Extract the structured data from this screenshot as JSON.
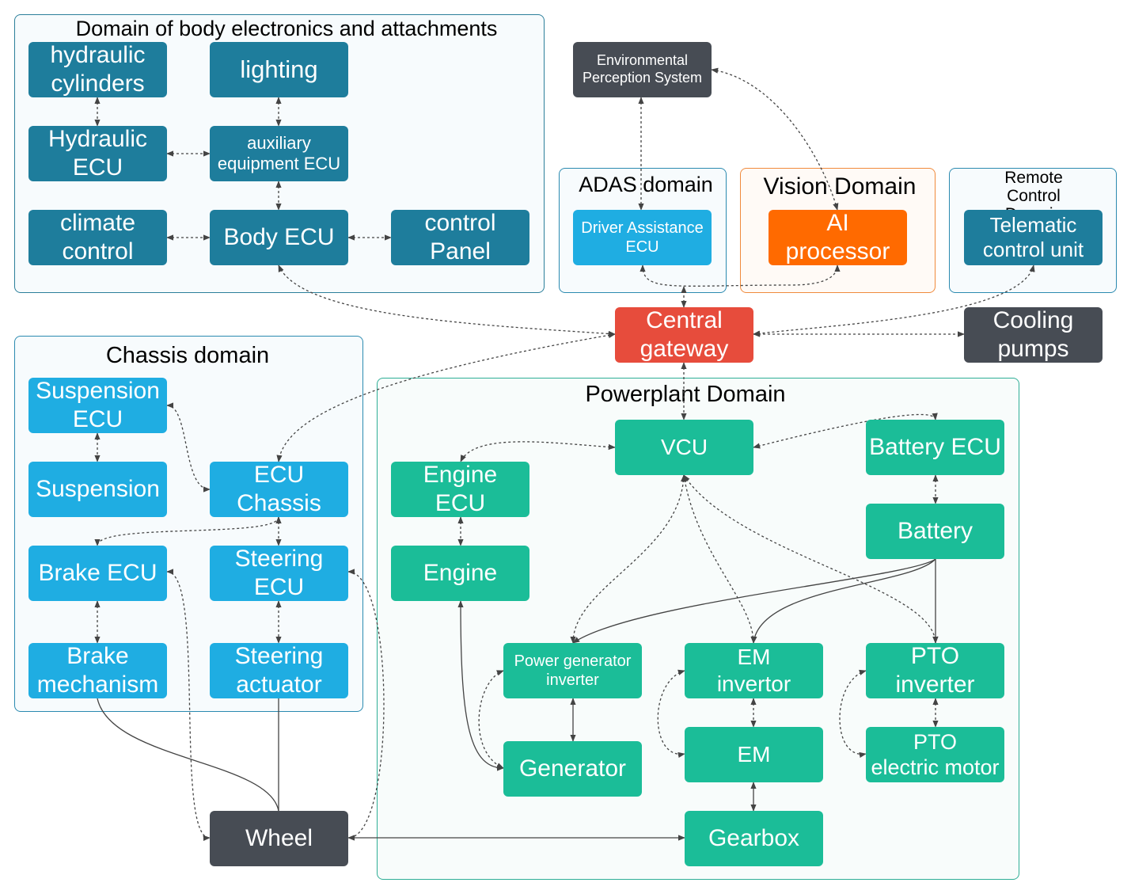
{
  "domains": [
    {
      "title": "Domain of body electronics and attachments"
    },
    {
      "title": "ADAS domain"
    },
    {
      "title": "Vision Domain"
    },
    {
      "title": "Remote Control\nDomain"
    },
    {
      "title": "Chassis domain"
    },
    {
      "title": "Powerplant Domain"
    }
  ],
  "nodes": [
    {
      "label": "hydraulic\ncylinders"
    },
    {
      "label": "lighting"
    },
    {
      "label": "Hydraulic\nECU"
    },
    {
      "label": "auxiliary\nequipment ECU"
    },
    {
      "label": "climate\ncontrol"
    },
    {
      "label": "Body ECU"
    },
    {
      "label": "control\nPanel"
    },
    {
      "label": "Environmental\nPerception System"
    },
    {
      "label": "Driver Assistance\nECU"
    },
    {
      "label": "AI\nprocessor"
    },
    {
      "label": "Telematic\ncontrol unit"
    },
    {
      "label": "Central\ngateway"
    },
    {
      "label": "Cooling\npumps"
    },
    {
      "label": "Suspension\nECU"
    },
    {
      "label": "Suspension"
    },
    {
      "label": "ECU\nChassis"
    },
    {
      "label": "Brake ECU"
    },
    {
      "label": "Steering\nECU"
    },
    {
      "label": "Brake\nmechanism"
    },
    {
      "label": "Steering\nactuator"
    },
    {
      "label": "Wheel"
    },
    {
      "label": "VCU"
    },
    {
      "label": "Battery ECU"
    },
    {
      "label": "Engine\nECU"
    },
    {
      "label": "Battery"
    },
    {
      "label": "Engine"
    },
    {
      "label": "Power generator\ninverter"
    },
    {
      "label": "EM\ninvertor"
    },
    {
      "label": "PTO\ninverter"
    },
    {
      "label": "Generator"
    },
    {
      "label": "EM"
    },
    {
      "label": "PTO\nelectric motor"
    },
    {
      "label": "Gearbox"
    }
  ]
}
